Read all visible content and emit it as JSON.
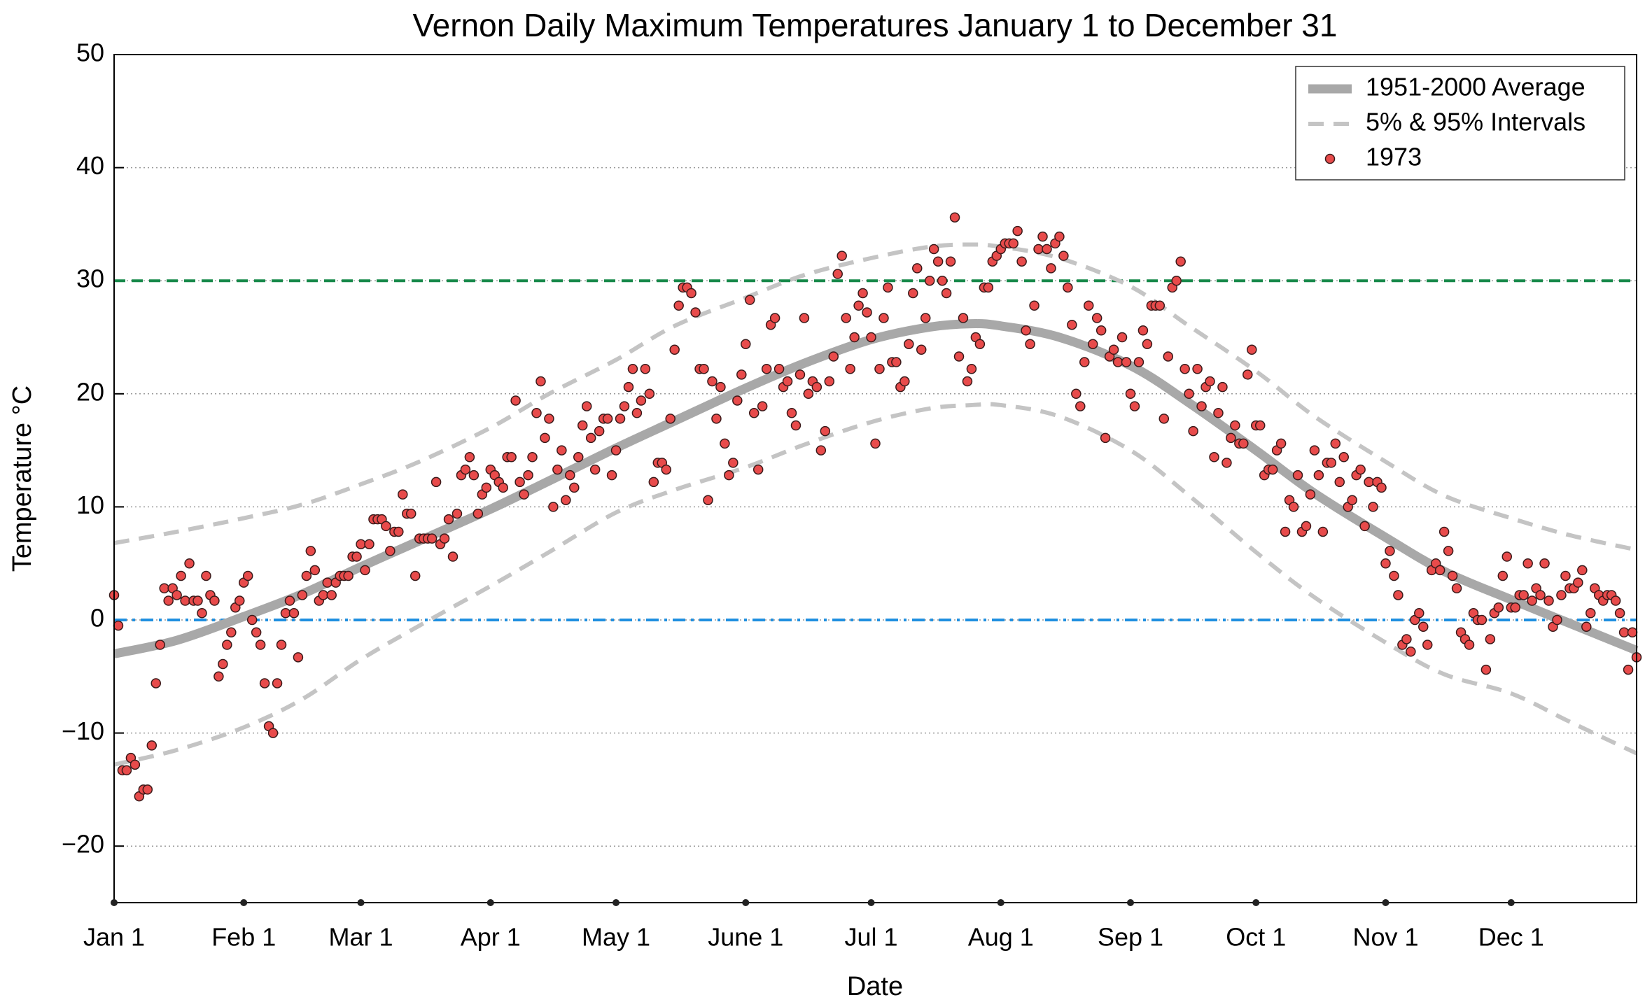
{
  "chart_data": {
    "type": "scatter",
    "title": "Vernon Daily Maximum Temperatures January 1 to December 31",
    "x_label": "Date",
    "y_label": "Temperature °C",
    "xlim": [
      1,
      365
    ],
    "ylim": [
      -25,
      50
    ],
    "xticks": [
      {
        "value": 1,
        "label": "Jan 1"
      },
      {
        "value": 32,
        "label": "Feb 1"
      },
      {
        "value": 60,
        "label": "Mar 1"
      },
      {
        "value": 91,
        "label": "Apr 1"
      },
      {
        "value": 121,
        "label": "May 1"
      },
      {
        "value": 152,
        "label": "June 1"
      },
      {
        "value": 182,
        "label": "Jul 1"
      },
      {
        "value": 213,
        "label": "Aug 1"
      },
      {
        "value": 244,
        "label": "Sep 1"
      },
      {
        "value": 274,
        "label": "Oct 1"
      },
      {
        "value": 305,
        "label": "Nov 1"
      },
      {
        "value": 335,
        "label": "Dec 1"
      }
    ],
    "yticks": [
      {
        "value": -20,
        "label": "−20"
      },
      {
        "value": -10,
        "label": "−10"
      },
      0,
      10,
      20,
      30,
      40,
      50
    ],
    "grid": true,
    "legend": "upper right",
    "hlines": [
      {
        "value": 30,
        "color": "#17894a",
        "style": "dashed"
      },
      {
        "value": 0,
        "color": "#1f8fe0",
        "style": "dashdot"
      }
    ],
    "series": [
      {
        "name": "1951-2000 Average",
        "kind": "line",
        "color": "#a8a8a8",
        "x": [
          1,
          16,
          32,
          46,
          60,
          74,
          91,
          105,
          121,
          135,
          152,
          166,
          182,
          196,
          206,
          213,
          227,
          244,
          258,
          274,
          288,
          305,
          319,
          335,
          349,
          365
        ],
        "values": [
          -3,
          -1.8,
          0.3,
          2.3,
          4.7,
          7,
          9.8,
          12.3,
          15.2,
          17.6,
          20.5,
          22.7,
          24.8,
          25.9,
          26.2,
          26,
          25,
          22.5,
          19.2,
          15,
          11.2,
          7.3,
          4.3,
          1.8,
          -0.3,
          -2.7
        ]
      },
      {
        "name": "5% & 95% Intervals",
        "kind": "band",
        "color": "#c4c4c4",
        "x": [
          1,
          16,
          32,
          46,
          60,
          74,
          91,
          105,
          121,
          135,
          152,
          166,
          182,
          196,
          206,
          213,
          227,
          244,
          258,
          274,
          288,
          305,
          319,
          335,
          349,
          365
        ],
        "upper": [
          6.8,
          7.8,
          9,
          10.2,
          12,
          14,
          17,
          20,
          23,
          26,
          28.5,
          30.5,
          32,
          33,
          33.2,
          33,
          32,
          29.5,
          26,
          22,
          18,
          14,
          11,
          9,
          7.5,
          6.2
        ],
        "lower": [
          -12.8,
          -11.5,
          -9.5,
          -7,
          -3.5,
          -0.5,
          3,
          6,
          9.5,
          11.5,
          13.5,
          15.5,
          17.5,
          18.7,
          19,
          19,
          18,
          15,
          11,
          6,
          2,
          -2,
          -4.8,
          -6.5,
          -9,
          -11.8
        ]
      },
      {
        "name": "1973",
        "kind": "points",
        "color": "#e84b4b",
        "x": [
          1,
          2,
          3,
          4,
          5,
          6,
          7,
          8,
          9,
          10,
          11,
          12,
          13,
          14,
          15,
          16,
          17,
          18,
          19,
          20,
          21,
          22,
          23,
          24,
          25,
          26,
          27,
          28,
          29,
          30,
          31,
          32,
          33,
          34,
          35,
          36,
          37,
          38,
          39,
          40,
          41,
          42,
          43,
          44,
          45,
          46,
          47,
          48,
          49,
          50,
          51,
          52,
          53,
          54,
          55,
          56,
          57,
          58,
          59,
          60,
          61,
          62,
          63,
          64,
          65,
          66,
          67,
          68,
          69,
          70,
          71,
          72,
          73,
          74,
          75,
          76,
          77,
          78,
          79,
          80,
          81,
          82,
          83,
          84,
          85,
          86,
          87,
          88,
          89,
          90,
          91,
          92,
          93,
          94,
          95,
          96,
          97,
          98,
          99,
          100,
          101,
          102,
          103,
          104,
          105,
          106,
          107,
          108,
          109,
          110,
          111,
          112,
          113,
          114,
          115,
          116,
          117,
          118,
          119,
          120,
          121,
          122,
          123,
          124,
          125,
          126,
          127,
          128,
          129,
          130,
          131,
          132,
          133,
          134,
          135,
          136,
          137,
          138,
          139,
          140,
          141,
          142,
          143,
          144,
          145,
          146,
          147,
          148,
          149,
          150,
          151,
          152,
          153,
          154,
          155,
          156,
          157,
          158,
          159,
          160,
          161,
          162,
          163,
          164,
          165,
          166,
          167,
          168,
          169,
          170,
          171,
          172,
          173,
          174,
          175,
          176,
          177,
          178,
          179,
          180,
          181,
          182,
          183,
          184,
          185,
          186,
          187,
          188,
          189,
          190,
          191,
          192,
          193,
          194,
          195,
          196,
          197,
          198,
          199,
          200,
          201,
          202,
          203,
          204,
          205,
          206,
          207,
          208,
          209,
          210,
          211,
          212,
          213,
          214,
          215,
          216,
          217,
          218,
          219,
          220,
          221,
          222,
          223,
          224,
          225,
          226,
          227,
          228,
          229,
          230,
          231,
          232,
          233,
          234,
          235,
          236,
          237,
          238,
          239,
          240,
          241,
          242,
          243,
          244,
          245,
          246,
          247,
          248,
          249,
          250,
          251,
          252,
          253,
          254,
          255,
          256,
          257,
          258,
          259,
          260,
          261,
          262,
          263,
          264,
          265,
          266,
          267,
          268,
          269,
          270,
          271,
          272,
          273,
          274,
          275,
          276,
          277,
          278,
          279,
          280,
          281,
          282,
          283,
          284,
          285,
          286,
          287,
          288,
          289,
          290,
          291,
          292,
          293,
          294,
          295,
          296,
          297,
          298,
          299,
          300,
          301,
          302,
          303,
          304,
          305,
          306,
          307,
          308,
          309,
          310,
          311,
          312,
          313,
          314,
          315,
          316,
          317,
          318,
          319,
          320,
          321,
          322,
          323,
          324,
          325,
          326,
          327,
          328,
          329,
          330,
          331,
          332,
          333,
          334,
          335,
          336,
          337,
          338,
          339,
          340,
          341,
          342,
          343,
          344,
          345,
          346,
          347,
          348,
          349,
          350,
          351,
          352,
          353,
          354,
          355,
          356,
          357,
          358,
          359,
          360,
          361,
          362,
          363,
          364,
          365
        ],
        "values": [
          2.2,
          -0.5,
          -13.3,
          -13.3,
          -12.2,
          -12.8,
          -15.6,
          -15,
          -15,
          -11.1,
          -5.6,
          -2.2,
          2.8,
          1.7,
          2.8,
          2.2,
          3.9,
          1.7,
          5,
          1.7,
          1.7,
          0.6,
          3.9,
          2.2,
          1.7,
          -5,
          -3.9,
          -2.2,
          -1.1,
          1.1,
          1.7,
          3.3,
          3.9,
          0,
          -1.1,
          -2.2,
          -5.6,
          -9.4,
          -10,
          -5.6,
          -2.2,
          0.6,
          1.7,
          0.6,
          -3.3,
          2.2,
          3.9,
          6.1,
          4.4,
          1.7,
          2.2,
          3.3,
          2.2,
          3.3,
          3.9,
          3.9,
          3.9,
          5.6,
          5.6,
          6.7,
          4.4,
          6.7,
          8.9,
          8.9,
          8.9,
          8.3,
          6.1,
          7.8,
          7.8,
          11.1,
          9.4,
          9.4,
          3.9,
          7.2,
          7.2,
          7.2,
          7.2,
          12.2,
          6.7,
          7.2,
          8.9,
          5.6,
          9.4,
          12.8,
          13.3,
          14.4,
          12.8,
          9.4,
          11.1,
          11.7,
          13.3,
          12.8,
          12.2,
          11.7,
          14.4,
          14.4,
          19.4,
          12.2,
          11.1,
          12.8,
          14.4,
          18.3,
          21.1,
          16.1,
          17.8,
          10,
          13.3,
          15,
          10.6,
          12.8,
          11.7,
          14.4,
          17.2,
          18.9,
          16.1,
          13.3,
          16.7,
          17.8,
          17.8,
          12.8,
          15,
          17.8,
          18.9,
          20.6,
          22.2,
          18.3,
          19.4,
          22.2,
          20,
          12.2,
          13.9,
          13.9,
          13.3,
          17.8,
          23.9,
          27.8,
          29.4,
          29.4,
          28.9,
          27.2,
          22.2,
          22.2,
          10.6,
          21.1,
          17.8,
          20.6,
          15.6,
          12.8,
          13.9,
          19.4,
          21.7,
          24.4,
          28.3,
          18.3,
          13.3,
          18.9,
          22.2,
          26.1,
          26.7,
          22.2,
          20.6,
          21.1,
          18.3,
          17.2,
          21.7,
          26.7,
          20,
          21.1,
          20.6,
          15,
          16.7,
          21.1,
          23.3,
          30.6,
          32.2,
          26.7,
          22.2,
          25,
          27.8,
          28.9,
          27.2,
          25,
          15.6,
          22.2,
          26.7,
          29.4,
          22.8,
          22.8,
          20.6,
          21.1,
          24.4,
          28.9,
          31.1,
          23.9,
          26.7,
          30,
          32.8,
          31.7,
          30,
          28.9,
          31.7,
          35.6,
          23.3,
          26.7,
          21.1,
          22.2,
          25,
          24.4,
          29.4,
          29.4,
          31.7,
          32.2,
          32.8,
          33.3,
          33.3,
          33.3,
          34.4,
          31.7,
          25.6,
          24.4,
          27.8,
          32.8,
          33.9,
          32.8,
          31.1,
          33.3,
          33.9,
          32.2,
          29.4,
          26.1,
          20,
          18.9,
          22.8,
          27.8,
          24.4,
          26.7,
          25.6,
          16.1,
          23.3,
          23.9,
          22.8,
          25,
          22.8,
          20,
          18.9,
          22.8,
          25.6,
          24.4,
          27.8,
          27.8,
          27.8,
          17.8,
          23.3,
          29.4,
          30,
          31.7,
          22.2,
          20,
          16.7,
          22.2,
          18.9,
          20.6,
          21.1,
          14.4,
          18.3,
          20.6,
          13.9,
          16.1,
          17.2,
          15.6,
          15.6,
          21.7,
          23.9,
          17.2,
          17.2,
          12.8,
          13.3,
          13.3,
          15,
          15.6,
          7.8,
          10.6,
          10,
          12.8,
          7.8,
          8.3,
          11.1,
          15,
          12.8,
          7.8,
          13.9,
          13.9,
          15.6,
          12.2,
          14.4,
          10,
          10.6,
          12.8,
          13.3,
          8.3,
          12.2,
          10,
          12.2,
          11.7,
          5,
          6.1,
          3.9,
          2.2,
          -2.2,
          -1.7,
          -2.8,
          0,
          0.6,
          -0.6,
          -2.2,
          4.4,
          5,
          4.4,
          7.8,
          6.1,
          3.9,
          2.8,
          -1.1,
          -1.7,
          -2.2,
          0.6,
          0,
          0,
          -4.4,
          -1.7,
          0.6,
          1.1,
          3.9,
          5.6,
          1.1,
          1.1,
          2.2,
          2.2,
          5,
          1.7,
          2.8,
          2.2,
          5,
          1.7,
          -0.6,
          0,
          2.2,
          3.9,
          2.8,
          2.8,
          3.3,
          4.4,
          -0.6,
          0.6,
          2.8,
          2.2,
          1.7,
          2.2,
          2.2,
          1.7,
          0.6,
          -1.1,
          -4.4,
          -1.1,
          -3.3
        ]
      }
    ]
  }
}
